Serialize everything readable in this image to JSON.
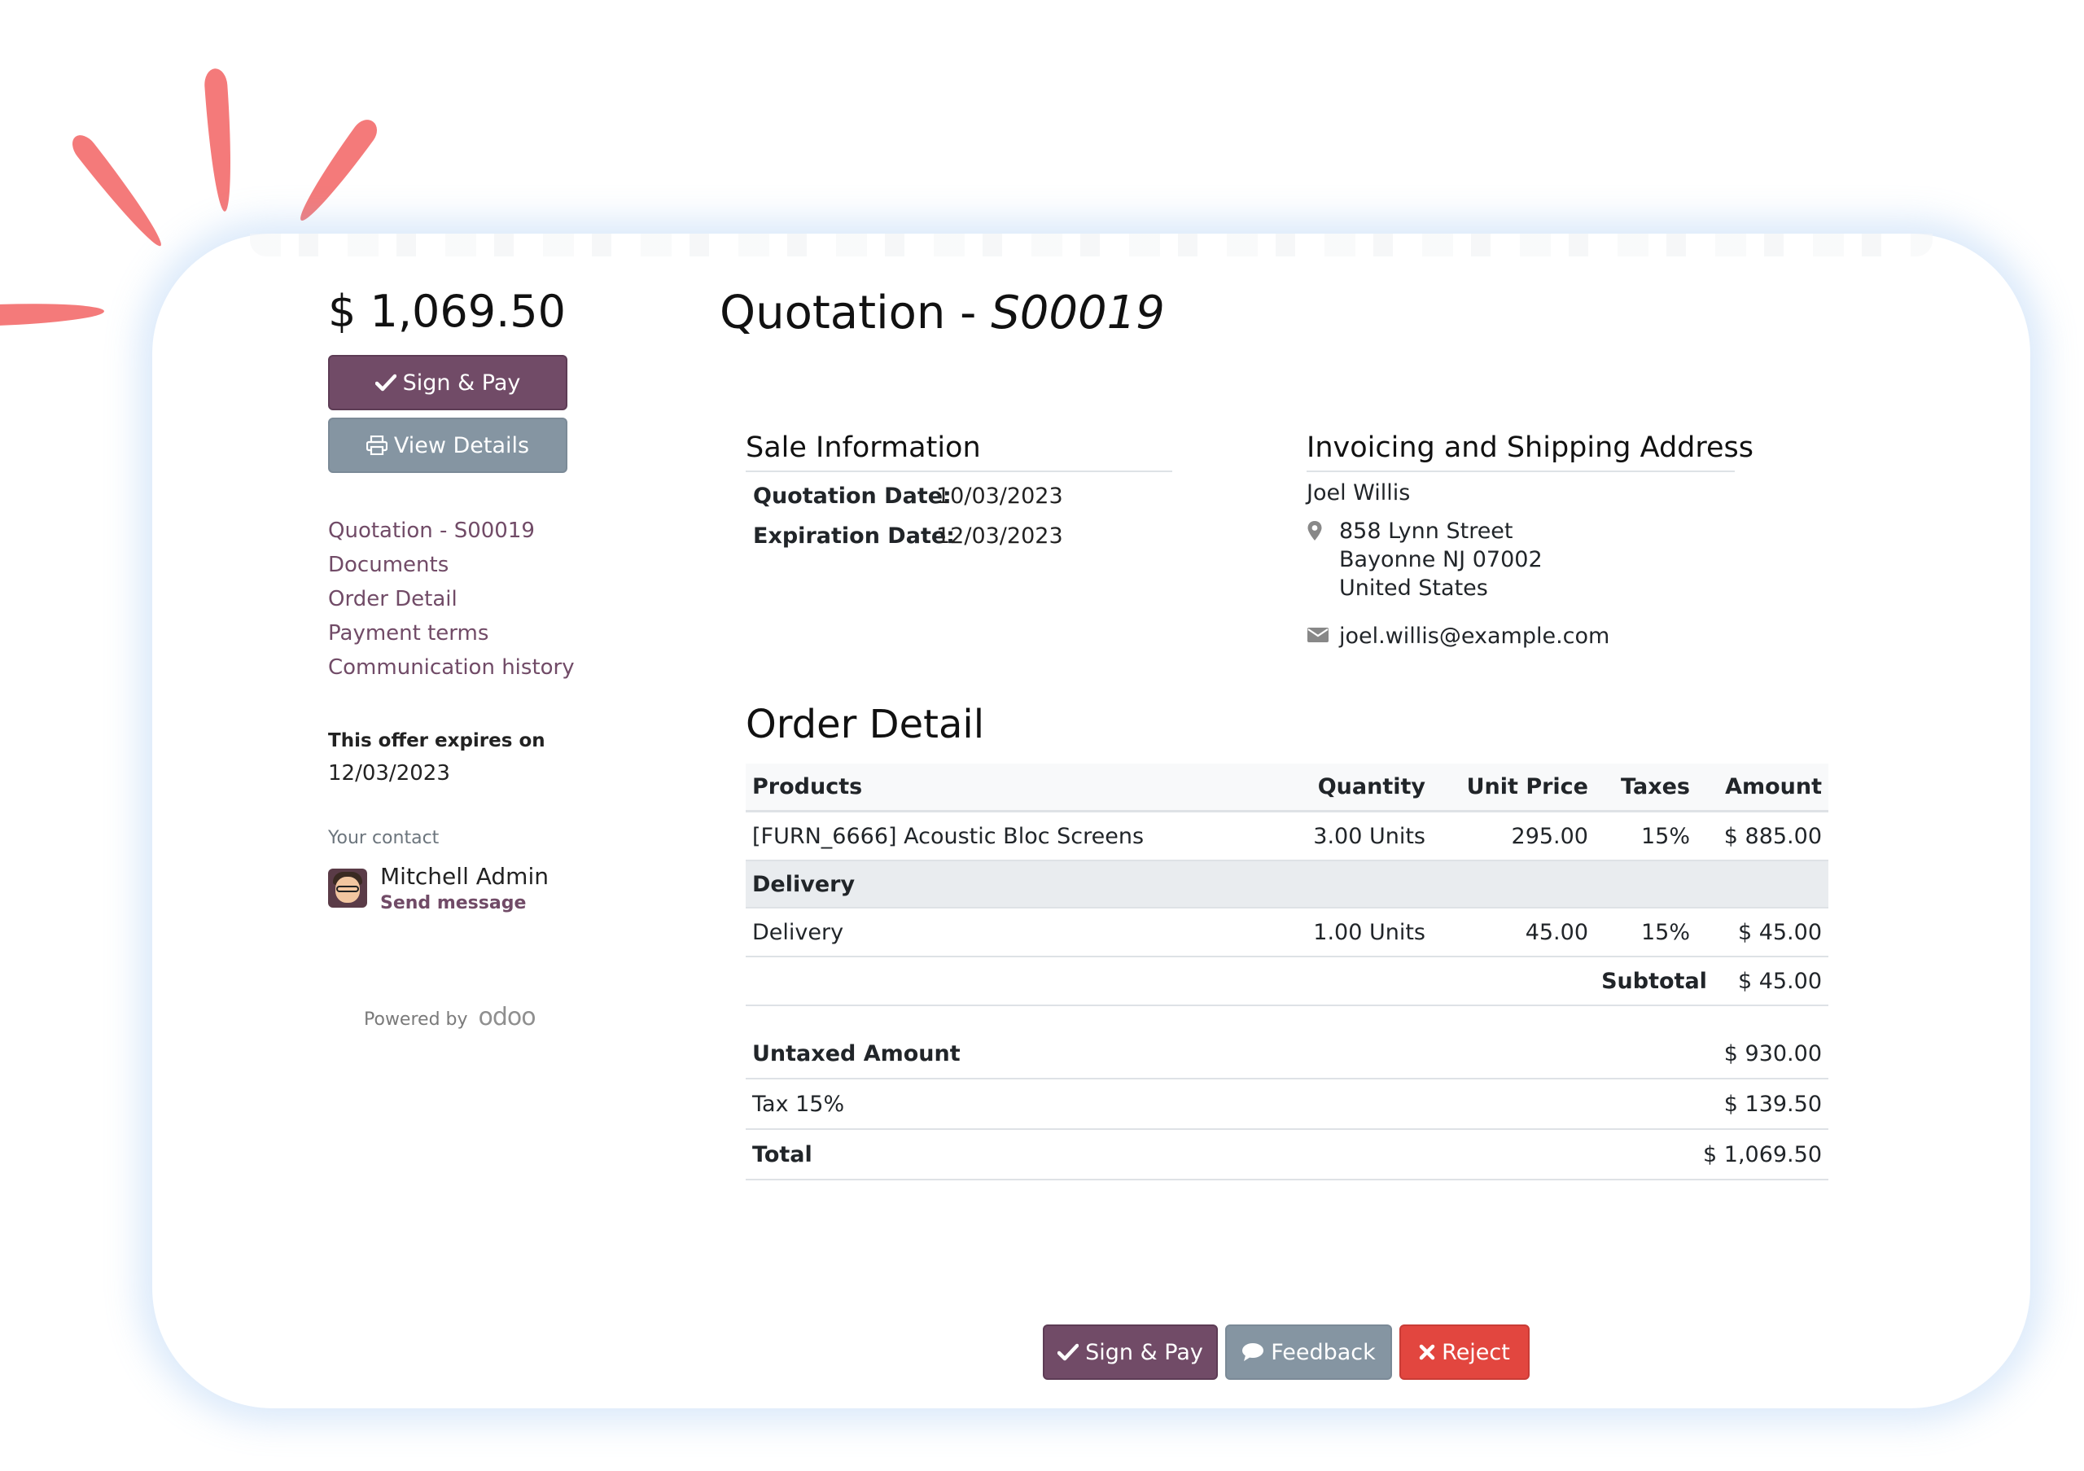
{
  "sidebar": {
    "amount": "$ 1,069.50",
    "sign_pay_label": "Sign & Pay",
    "view_details_label": "View Details",
    "nav": [
      {
        "label": "Quotation - S00019"
      },
      {
        "label": "Documents"
      },
      {
        "label": "Order Detail"
      },
      {
        "label": "Payment terms"
      },
      {
        "label": "Communication history"
      }
    ],
    "expires_label": "This offer expires on",
    "expires_date": "12/03/2023",
    "contact_label": "Your contact",
    "contact_name": "Mitchell Admin",
    "send_message": "Send message",
    "powered_by": "Powered by",
    "powered_brand": "odoo"
  },
  "main": {
    "title_prefix": "Quotation - ",
    "title_ref": "S00019",
    "sale_info": {
      "heading": "Sale Information",
      "quotation_date_label": "Quotation Date:",
      "quotation_date": "10/03/2023",
      "expiration_date_label": "Expiration Date:",
      "expiration_date": "12/03/2023"
    },
    "address": {
      "heading": "Invoicing and Shipping Address",
      "name": "Joel Willis",
      "street": "858 Lynn Street",
      "city": "Bayonne NJ 07002",
      "country": "United States",
      "email": "joel.willis@example.com"
    },
    "order_detail": {
      "heading": "Order Detail",
      "columns": {
        "products": "Products",
        "quantity": "Quantity",
        "unit_price": "Unit Price",
        "taxes": "Taxes",
        "amount": "Amount"
      },
      "line1": {
        "product": "[FURN_6666] Acoustic Bloc Screens",
        "quantity": "3.00 Units",
        "unit_price": "295.00",
        "taxes": "15%",
        "amount": "$ 885.00"
      },
      "section": "Delivery",
      "line2": {
        "product": "Delivery",
        "quantity": "1.00 Units",
        "unit_price": "45.00",
        "taxes": "15%",
        "amount": "$ 45.00"
      },
      "subtotal_label": "Subtotal",
      "subtotal_value": "$ 45.00",
      "untaxed_label": "Untaxed Amount",
      "untaxed_value": "$ 930.00",
      "tax_label": "Tax 15%",
      "tax_value": "$ 139.50",
      "total_label": "Total",
      "total_value": "$ 1,069.50"
    }
  },
  "actions": {
    "sign_pay": "Sign & Pay",
    "feedback": "Feedback",
    "reject": "Reject"
  },
  "colors": {
    "primary": "#714b67",
    "secondary": "#8595a2",
    "danger": "#e2463f",
    "accent_rays": "#f47a7a"
  }
}
